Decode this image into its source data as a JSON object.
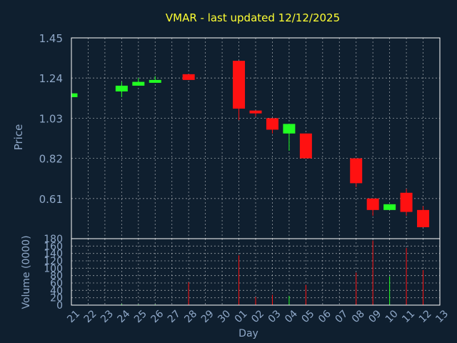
{
  "chart_data": {
    "type": "candlestick",
    "title": "VMAR - last updated 12/12/2025",
    "xlabel": "Day",
    "ylabel": "Price",
    "volume_label": "Volume (0000)",
    "x_ticks": [
      "21",
      "22",
      "23",
      "24",
      "25",
      "26",
      "27",
      "28",
      "29",
      "30",
      "01",
      "02",
      "03",
      "04",
      "05",
      "06",
      "07",
      "08",
      "09",
      "10",
      "11",
      "12",
      "13"
    ],
    "price_ticks": [
      "1.45",
      "1.24",
      "1.03",
      "0.82",
      "0.61"
    ],
    "price_ylim": [
      0.4,
      1.45
    ],
    "volume_ticks": [
      "180",
      "160",
      "140",
      "120",
      "100",
      "80",
      "60",
      "40",
      "20",
      "0"
    ],
    "volume_ylim": [
      0,
      180
    ],
    "grid": true,
    "colors": {
      "background": "#0f1f2f",
      "title": "#ffff33",
      "label": "#8fa8c8",
      "axis": "#ffffff",
      "grid": "#ffffff",
      "up": "#22ff22",
      "down": "#ff1111"
    },
    "candles": [
      {
        "day": "21",
        "open": 1.14,
        "close": 1.16,
        "high": 1.16,
        "low": 1.14,
        "volume": 2
      },
      {
        "day": "24",
        "open": 1.17,
        "close": 1.2,
        "high": 1.22,
        "low": 1.14,
        "volume": 3
      },
      {
        "day": "25",
        "open": 1.2,
        "close": 1.22,
        "high": 1.24,
        "low": 1.2,
        "volume": 2
      },
      {
        "day": "26",
        "open": 1.22,
        "close": 1.23,
        "high": 1.25,
        "low": 1.22,
        "volume": 2
      },
      {
        "day": "28",
        "open": 1.26,
        "close": 1.23,
        "high": 1.26,
        "low": 1.23,
        "volume": 62
      },
      {
        "day": "01",
        "open": 1.33,
        "close": 1.08,
        "high": 1.33,
        "low": 1.02,
        "volume": 135
      },
      {
        "day": "02",
        "open": 1.07,
        "close": 1.06,
        "high": 1.07,
        "low": 1.04,
        "volume": 22
      },
      {
        "day": "03",
        "open": 1.03,
        "close": 0.97,
        "high": 1.03,
        "low": 0.95,
        "volume": 28
      },
      {
        "day": "04",
        "open": 0.95,
        "close": 1.0,
        "high": 1.0,
        "low": 0.86,
        "volume": 25
      },
      {
        "day": "05",
        "open": 0.95,
        "close": 0.82,
        "high": 0.95,
        "low": 0.82,
        "volume": 55
      },
      {
        "day": "08",
        "open": 0.82,
        "close": 0.69,
        "high": 0.82,
        "low": 0.67,
        "volume": 88
      },
      {
        "day": "09",
        "open": 0.61,
        "close": 0.55,
        "high": 0.61,
        "low": 0.52,
        "volume": 175
      },
      {
        "day": "10",
        "open": 0.55,
        "close": 0.58,
        "high": 0.58,
        "low": 0.55,
        "volume": 78
      },
      {
        "day": "11",
        "open": 0.64,
        "close": 0.54,
        "high": 0.66,
        "low": 0.52,
        "volume": 155
      },
      {
        "day": "12",
        "open": 0.55,
        "close": 0.46,
        "high": 0.57,
        "low": 0.46,
        "volume": 95
      }
    ]
  }
}
